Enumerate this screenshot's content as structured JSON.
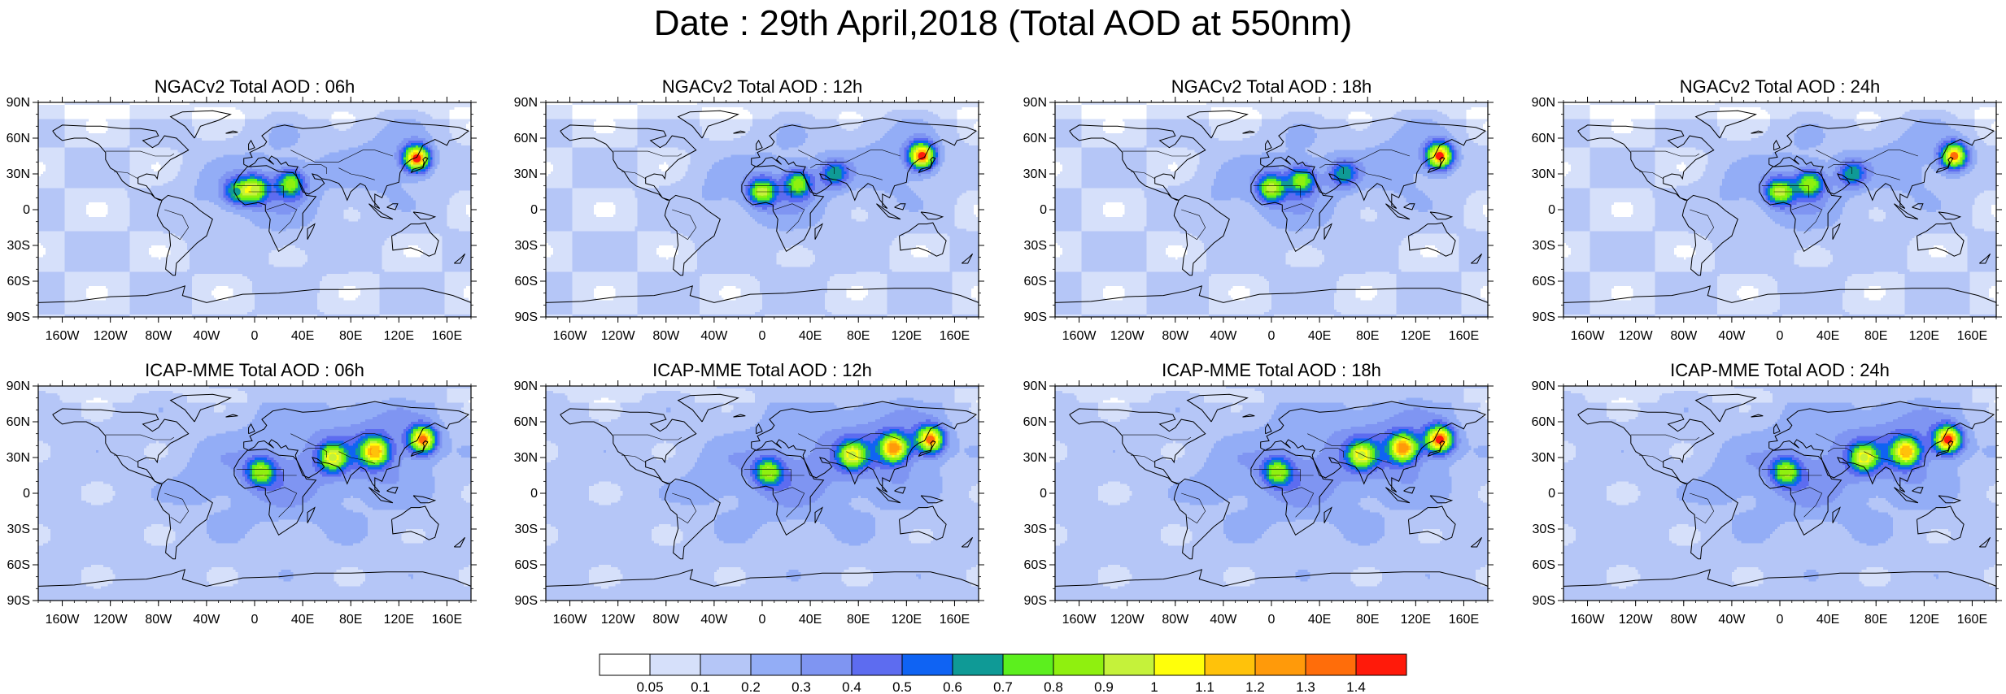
{
  "title": "Date : 29th April,2018 (Total AOD at 550nm)",
  "colors": {
    "map_background": "#ffffff",
    "coastline": "#000000",
    "light_blue": "#c9d7f5"
  },
  "chart_data": [
    {
      "type": "heatmap",
      "title": "NGACv2 Total AOD : 06h",
      "x_ticks": [
        "160W",
        "120W",
        "80W",
        "40W",
        "0",
        "40E",
        "80E",
        "120E",
        "160E"
      ],
      "y_ticks": [
        "90N",
        "60N",
        "30N",
        "0",
        "30S",
        "60S",
        "90S"
      ],
      "xlim": [
        -180,
        180
      ],
      "ylim": [
        -90,
        90
      ],
      "hotspots": [
        {
          "lon": 135,
          "lat": 43,
          "aod": 1.4
        },
        {
          "lon": 0,
          "lat": 17,
          "aod": 0.9
        },
        {
          "lon": 30,
          "lat": 22,
          "aod": 0.8
        },
        {
          "lon": -15,
          "lat": 15,
          "aod": 0.6
        }
      ]
    },
    {
      "type": "heatmap",
      "title": "NGACv2 Total AOD : 12h",
      "x_ticks": [
        "160W",
        "120W",
        "80W",
        "40W",
        "0",
        "40E",
        "80E",
        "120E",
        "160E"
      ],
      "y_ticks": [
        "90N",
        "60N",
        "30N",
        "0",
        "30S",
        "60S",
        "90S"
      ],
      "xlim": [
        -180,
        180
      ],
      "ylim": [
        -90,
        90
      ],
      "hotspots": [
        {
          "lon": 133,
          "lat": 45,
          "aod": 1.4
        },
        {
          "lon": 0,
          "lat": 15,
          "aod": 0.9
        },
        {
          "lon": 30,
          "lat": 22,
          "aod": 0.8
        },
        {
          "lon": 60,
          "lat": 30,
          "aod": 0.6
        }
      ]
    },
    {
      "type": "heatmap",
      "title": "NGACv2 Total AOD : 18h",
      "x_ticks": [
        "160W",
        "120W",
        "80W",
        "40W",
        "0",
        "40E",
        "80E",
        "120E",
        "160E"
      ],
      "y_ticks": [
        "90N",
        "60N",
        "30N",
        "0",
        "30S",
        "60S",
        "90S"
      ],
      "xlim": [
        -180,
        180
      ],
      "ylim": [
        -90,
        90
      ],
      "hotspots": [
        {
          "lon": 140,
          "lat": 45,
          "aod": 1.4
        },
        {
          "lon": 0,
          "lat": 18,
          "aod": 0.9
        },
        {
          "lon": 25,
          "lat": 25,
          "aod": 0.8
        },
        {
          "lon": 60,
          "lat": 30,
          "aod": 0.6
        }
      ]
    },
    {
      "type": "heatmap",
      "title": "NGACv2 Total AOD : 24h",
      "x_ticks": [
        "160W",
        "120W",
        "80W",
        "40W",
        "0",
        "40E",
        "80E",
        "120E",
        "160E"
      ],
      "y_ticks": [
        "90N",
        "60N",
        "30N",
        "0",
        "30S",
        "60S",
        "90S"
      ],
      "xlim": [
        -180,
        180
      ],
      "ylim": [
        -90,
        90
      ],
      "hotspots": [
        {
          "lon": 145,
          "lat": 45,
          "aod": 1.3
        },
        {
          "lon": 0,
          "lat": 15,
          "aod": 0.9
        },
        {
          "lon": 25,
          "lat": 22,
          "aod": 0.8
        },
        {
          "lon": 60,
          "lat": 30,
          "aod": 0.6
        }
      ]
    },
    {
      "type": "heatmap",
      "title": "ICAP-MME Total AOD : 06h",
      "x_ticks": [
        "160W",
        "120W",
        "80W",
        "40W",
        "0",
        "40E",
        "80E",
        "120E",
        "160E"
      ],
      "y_ticks": [
        "90N",
        "60N",
        "30N",
        "0",
        "30S",
        "60S",
        "90S"
      ],
      "xlim": [
        -180,
        180
      ],
      "ylim": [
        -90,
        90
      ],
      "hotspots": [
        {
          "lon": 140,
          "lat": 45,
          "aod": 1.3
        },
        {
          "lon": 100,
          "lat": 35,
          "aod": 1.1
        },
        {
          "lon": 65,
          "lat": 30,
          "aod": 0.9
        },
        {
          "lon": 5,
          "lat": 18,
          "aod": 0.8
        }
      ]
    },
    {
      "type": "heatmap",
      "title": "ICAP-MME Total AOD : 12h",
      "x_ticks": [
        "160W",
        "120W",
        "80W",
        "40W",
        "0",
        "40E",
        "80E",
        "120E",
        "160E"
      ],
      "y_ticks": [
        "90N",
        "60N",
        "30N",
        "0",
        "30S",
        "60S",
        "90S"
      ],
      "xlim": [
        -180,
        180
      ],
      "ylim": [
        -90,
        90
      ],
      "hotspots": [
        {
          "lon": 140,
          "lat": 45,
          "aod": 1.3
        },
        {
          "lon": 110,
          "lat": 38,
          "aod": 1.2
        },
        {
          "lon": 75,
          "lat": 32,
          "aod": 0.9
        },
        {
          "lon": 5,
          "lat": 18,
          "aod": 0.8
        }
      ]
    },
    {
      "type": "heatmap",
      "title": "ICAP-MME Total AOD : 18h",
      "x_ticks": [
        "160W",
        "120W",
        "80W",
        "40W",
        "0",
        "40E",
        "80E",
        "120E",
        "160E"
      ],
      "y_ticks": [
        "90N",
        "60N",
        "30N",
        "0",
        "30S",
        "60S",
        "90S"
      ],
      "xlim": [
        -180,
        180
      ],
      "ylim": [
        -90,
        90
      ],
      "hotspots": [
        {
          "lon": 140,
          "lat": 45,
          "aod": 1.4
        },
        {
          "lon": 110,
          "lat": 38,
          "aod": 1.2
        },
        {
          "lon": 75,
          "lat": 32,
          "aod": 0.9
        },
        {
          "lon": 5,
          "lat": 18,
          "aod": 0.8
        }
      ]
    },
    {
      "type": "heatmap",
      "title": "ICAP-MME Total AOD : 24h",
      "x_ticks": [
        "160W",
        "120W",
        "80W",
        "40W",
        "0",
        "40E",
        "80E",
        "120E",
        "160E"
      ],
      "y_ticks": [
        "90N",
        "60N",
        "30N",
        "0",
        "30S",
        "60S",
        "90S"
      ],
      "xlim": [
        -180,
        180
      ],
      "ylim": [
        -90,
        90
      ],
      "hotspots": [
        {
          "lon": 140,
          "lat": 45,
          "aod": 1.4
        },
        {
          "lon": 105,
          "lat": 35,
          "aod": 1.1
        },
        {
          "lon": 70,
          "lat": 30,
          "aod": 0.9
        },
        {
          "lon": 5,
          "lat": 18,
          "aod": 0.8
        }
      ]
    }
  ],
  "colorbar": {
    "labels": [
      "0.05",
      "0.1",
      "0.2",
      "0.3",
      "0.4",
      "0.5",
      "0.6",
      "0.7",
      "0.8",
      "0.9",
      "1",
      "1.1",
      "1.2",
      "1.3",
      "1.4"
    ],
    "thresholds": [
      0.05,
      0.1,
      0.2,
      0.3,
      0.4,
      0.5,
      0.6,
      0.7,
      0.8,
      0.9,
      1,
      1.1,
      1.2,
      1.3,
      1.4
    ],
    "colors": [
      "#ffffff",
      "#d6e0fa",
      "#b5c6f7",
      "#93adf6",
      "#7f95f2",
      "#5d6cf0",
      "#0f63f3",
      "#0f9a96",
      "#5cef1e",
      "#8ff00f",
      "#c5f23a",
      "#ffff0a",
      "#ffc20a",
      "#ff9a0a",
      "#ff6d0a",
      "#ff1a0a"
    ]
  }
}
